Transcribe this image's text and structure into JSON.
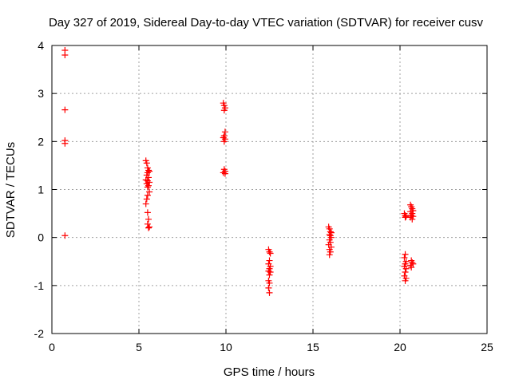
{
  "chart_data": {
    "type": "scatter",
    "title": "Day 327 of 2019, Sidereal Day-to-day VTEC variation (SDTVAR) for receiver cusv",
    "xlabel": "GPS time / hours",
    "ylabel": "SDTVAR / TECUs",
    "xlim": [
      0,
      25
    ],
    "ylim": [
      -2,
      4
    ],
    "x_ticks": [
      0,
      5,
      10,
      15,
      20,
      25
    ],
    "y_ticks": [
      -2,
      -1,
      0,
      1,
      2,
      3,
      4
    ],
    "x_tick_labels": [
      "0",
      "5",
      "10",
      "15",
      "20",
      "25"
    ],
    "y_tick_labels": [
      "-2",
      "-1",
      "0",
      "1",
      "2",
      "3",
      "4"
    ],
    "grid": true,
    "marker": "plus",
    "series": [
      {
        "name": "SDTVAR",
        "color": "#ff0000",
        "points": [
          [
            0.75,
            3.9
          ],
          [
            0.75,
            3.8
          ],
          [
            0.75,
            2.66
          ],
          [
            0.75,
            2.02
          ],
          [
            0.75,
            1.96
          ],
          [
            0.75,
            0.04
          ],
          [
            5.4,
            1.6
          ],
          [
            5.45,
            1.55
          ],
          [
            5.5,
            1.45
          ],
          [
            5.55,
            1.4
          ],
          [
            5.6,
            1.38
          ],
          [
            5.5,
            1.35
          ],
          [
            5.45,
            1.3
          ],
          [
            5.55,
            1.25
          ],
          [
            5.4,
            1.2
          ],
          [
            5.5,
            1.18
          ],
          [
            5.6,
            1.15
          ],
          [
            5.45,
            1.12
          ],
          [
            5.55,
            1.08
          ],
          [
            5.5,
            1.05
          ],
          [
            5.6,
            0.95
          ],
          [
            5.5,
            0.88
          ],
          [
            5.45,
            0.8
          ],
          [
            5.4,
            0.7
          ],
          [
            5.5,
            0.52
          ],
          [
            5.55,
            0.38
          ],
          [
            5.5,
            0.28
          ],
          [
            5.6,
            0.22
          ],
          [
            5.55,
            0.2
          ],
          [
            9.85,
            2.8
          ],
          [
            9.9,
            2.75
          ],
          [
            9.95,
            2.7
          ],
          [
            9.9,
            2.65
          ],
          [
            9.95,
            2.2
          ],
          [
            9.9,
            2.12
          ],
          [
            9.85,
            2.08
          ],
          [
            9.95,
            2.05
          ],
          [
            9.9,
            2.0
          ],
          [
            9.9,
            1.42
          ],
          [
            9.95,
            1.38
          ],
          [
            9.85,
            1.35
          ],
          [
            9.95,
            1.33
          ],
          [
            12.45,
            -0.25
          ],
          [
            12.5,
            -0.3
          ],
          [
            12.55,
            -0.33
          ],
          [
            12.5,
            -0.48
          ],
          [
            12.45,
            -0.55
          ],
          [
            12.55,
            -0.6
          ],
          [
            12.5,
            -0.65
          ],
          [
            12.45,
            -0.7
          ],
          [
            12.55,
            -0.72
          ],
          [
            12.5,
            -0.78
          ],
          [
            12.45,
            -0.9
          ],
          [
            12.5,
            -0.95
          ],
          [
            12.45,
            -1.05
          ],
          [
            12.5,
            -1.15
          ],
          [
            15.9,
            0.22
          ],
          [
            15.95,
            0.18
          ],
          [
            16.0,
            0.12
          ],
          [
            16.05,
            0.1
          ],
          [
            15.95,
            0.06
          ],
          [
            16.0,
            0.04
          ],
          [
            16.05,
            0.0
          ],
          [
            15.95,
            -0.05
          ],
          [
            16.0,
            -0.1
          ],
          [
            15.9,
            -0.15
          ],
          [
            16.05,
            -0.2
          ],
          [
            15.95,
            -0.25
          ],
          [
            16.0,
            -0.3
          ],
          [
            15.95,
            -0.36
          ],
          [
            20.25,
            0.5
          ],
          [
            20.3,
            0.46
          ],
          [
            20.35,
            0.44
          ],
          [
            20.3,
            0.42
          ],
          [
            20.3,
            -0.35
          ],
          [
            20.25,
            -0.42
          ],
          [
            20.35,
            -0.5
          ],
          [
            20.3,
            -0.55
          ],
          [
            20.25,
            -0.6
          ],
          [
            20.35,
            -0.65
          ],
          [
            20.3,
            -0.72
          ],
          [
            20.25,
            -0.8
          ],
          [
            20.35,
            -0.85
          ],
          [
            20.3,
            -0.9
          ],
          [
            20.6,
            0.68
          ],
          [
            20.65,
            0.64
          ],
          [
            20.7,
            0.6
          ],
          [
            20.75,
            0.56
          ],
          [
            20.6,
            0.54
          ],
          [
            20.7,
            0.5
          ],
          [
            20.65,
            0.46
          ],
          [
            20.75,
            0.44
          ],
          [
            20.6,
            0.42
          ],
          [
            20.7,
            0.38
          ],
          [
            20.65,
            -0.48
          ],
          [
            20.7,
            -0.52
          ],
          [
            20.75,
            -0.55
          ],
          [
            20.6,
            -0.58
          ],
          [
            20.65,
            -0.62
          ]
        ]
      }
    ]
  }
}
